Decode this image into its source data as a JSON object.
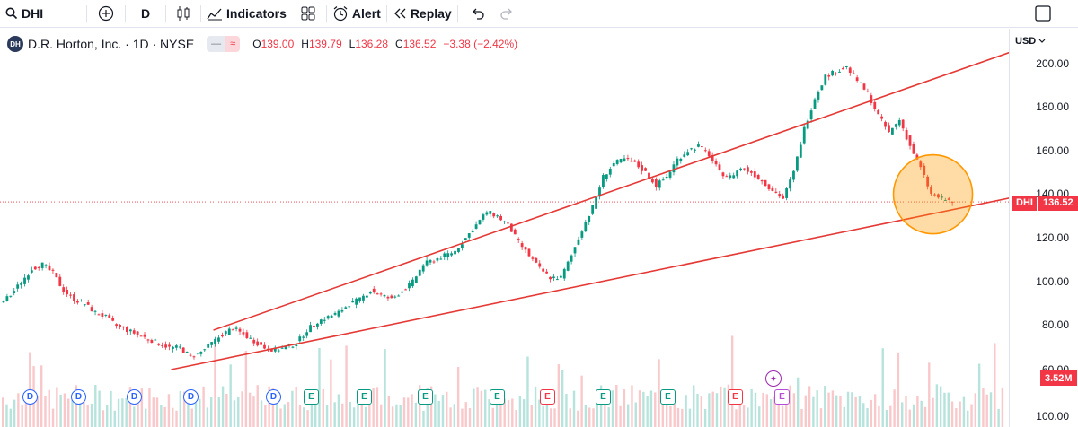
{
  "toolbar": {
    "symbol": "DHI",
    "interval": "D",
    "indicators_label": "Indicators",
    "alert_label": "Alert",
    "replay_label": "Replay"
  },
  "legend": {
    "title": "D.R. Horton, Inc. · 1D · NYSE",
    "logo_text": "DH",
    "pill_left": "—",
    "pill_right": "≈",
    "open_key": "O",
    "open": "139.00",
    "high_key": "H",
    "high": "139.79",
    "low_key": "L",
    "low": "136.28",
    "close_key": "C",
    "close": "136.52",
    "change": "−3.38 (−2.42%)"
  },
  "price_scale": {
    "currency": "USD",
    "labels": [
      "200.00",
      "180.00",
      "160.00",
      "140.00",
      "120.00",
      "100.00",
      "80.00",
      "60.00",
      "100.00"
    ],
    "symbol_tag": "DHI",
    "last_price": "136.52",
    "volume_tag": "3.52M"
  },
  "events": {
    "markers": [
      {
        "kind": "D"
      },
      {
        "kind": "D"
      },
      {
        "kind": "D"
      },
      {
        "kind": "D"
      },
      {
        "kind": "D"
      },
      {
        "kind": "E",
        "color": "green"
      },
      {
        "kind": "E",
        "color": "green"
      },
      {
        "kind": "E",
        "color": "green"
      },
      {
        "kind": "E",
        "color": "green"
      },
      {
        "kind": "E",
        "color": "red"
      },
      {
        "kind": "E",
        "color": "green"
      },
      {
        "kind": "E",
        "color": "green"
      },
      {
        "kind": "E",
        "color": "red"
      },
      {
        "kind": "E",
        "color": "purple"
      }
    ]
  },
  "colors": {
    "up": "#089981",
    "down": "#f23645",
    "trendline": "#e53935",
    "highlight_circle": "#ff9800"
  },
  "chart_data": {
    "type": "line",
    "title": "",
    "xlabel": "",
    "ylabel": "",
    "ylim": [
      60,
      205
    ],
    "grid": false,
    "x": [
      0,
      1,
      2,
      3,
      4,
      5,
      6,
      7,
      8,
      9,
      10,
      11,
      12,
      13,
      14,
      15,
      16,
      17,
      18,
      19,
      20,
      21,
      22,
      23,
      24,
      25,
      26,
      27,
      28,
      29,
      30,
      31,
      32,
      33,
      34,
      35,
      36,
      37,
      38,
      39,
      40,
      41,
      42,
      43,
      44,
      45,
      46,
      47,
      48,
      49,
      50,
      51,
      52,
      53,
      54,
      55,
      56,
      57,
      58,
      59,
      60,
      61,
      62,
      63,
      64,
      65,
      66,
      67,
      68,
      69,
      70,
      71,
      72,
      73,
      74,
      75,
      76,
      77,
      78,
      79,
      80,
      81,
      82,
      83,
      84,
      85,
      86,
      87,
      88,
      89,
      90
    ],
    "series": [
      {
        "values": [
          90,
          94,
          100,
          106,
          108,
          104,
          96,
          92,
          90,
          86,
          84,
          80,
          78,
          76,
          74,
          72,
          70,
          70,
          66,
          68,
          72,
          76,
          79,
          76,
          73,
          70,
          69,
          70,
          72,
          78,
          82,
          84,
          86,
          90,
          92,
          96,
          94,
          92,
          96,
          100,
          108,
          110,
          112,
          114,
          120,
          126,
          132,
          130,
          126,
          118,
          112,
          106,
          102,
          102,
          112,
          124,
          134,
          148,
          154,
          156,
          154,
          150,
          144,
          148,
          156,
          160,
          162,
          158,
          150,
          148,
          152,
          150,
          146,
          142,
          138,
          150,
          170,
          184,
          194,
          196,
          198,
          192,
          186,
          176,
          168,
          174,
          162,
          152,
          140,
          138,
          136.52
        ]
      }
    ],
    "trendlines": [
      {
        "x": [
          20,
          96
        ],
        "y": [
          78,
          206
        ]
      },
      {
        "x": [
          16,
          100
        ],
        "y": [
          60,
          143
        ]
      }
    ],
    "highlight": {
      "x": 88,
      "y": 140
    }
  }
}
